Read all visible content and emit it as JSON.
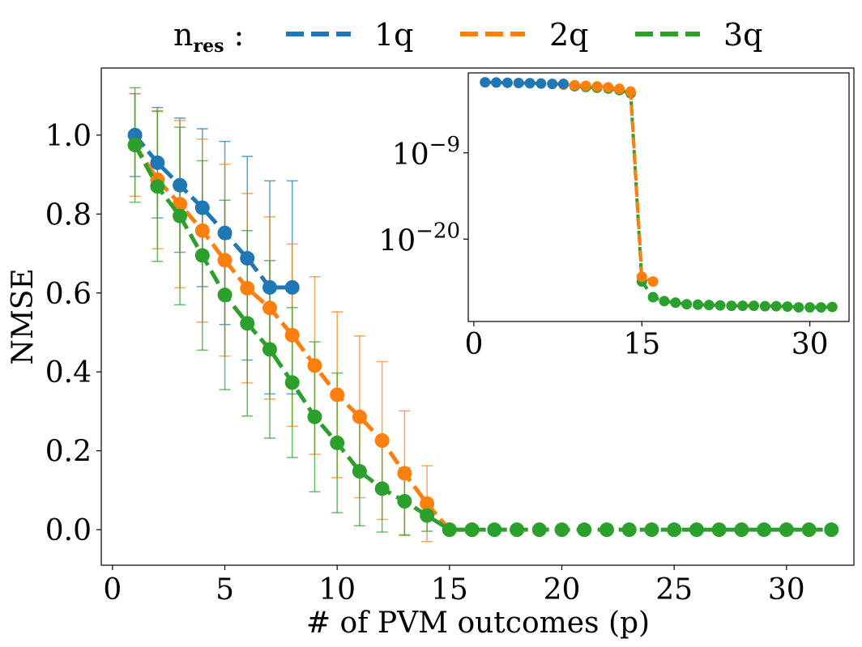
{
  "chart_data": {
    "type": "line",
    "main": {
      "xlabel": "# of PVM outcomes (p)",
      "ylabel": "NMSE",
      "xlim": [
        -0.5,
        33
      ],
      "ylim": [
        -0.09,
        1.17
      ],
      "xticks": [
        0,
        5,
        10,
        15,
        20,
        25,
        30
      ],
      "yticks": [
        0.0,
        0.2,
        0.4,
        0.6,
        0.8,
        1.0
      ],
      "ytick_labels": [
        "0.0",
        "0.2",
        "0.4",
        "0.6",
        "0.8",
        "1.0"
      ],
      "grid": false,
      "series": [
        {
          "name": "1q",
          "color": "#1f77b4",
          "x": [
            1,
            2,
            3,
            4,
            5,
            6,
            7,
            8
          ],
          "y": [
            1.0,
            0.93,
            0.873,
            0.816,
            0.752,
            0.688,
            0.614,
            0.614
          ],
          "err": [
            0.105,
            0.14,
            0.17,
            0.2,
            0.232,
            0.258,
            0.27,
            0.27
          ]
        },
        {
          "name": "2q",
          "color": "#ff7f0e",
          "x": [
            1,
            2,
            3,
            4,
            5,
            6,
            7,
            8,
            9,
            10,
            11,
            12,
            13,
            14,
            15,
            16
          ],
          "y": [
            0.975,
            0.887,
            0.825,
            0.758,
            0.683,
            0.612,
            0.562,
            0.493,
            0.416,
            0.342,
            0.286,
            0.226,
            0.143,
            0.066,
            0.0,
            0.0
          ],
          "err": [
            0.13,
            0.175,
            0.212,
            0.232,
            0.243,
            0.24,
            0.231,
            0.231,
            0.225,
            0.21,
            0.205,
            0.2,
            0.158,
            0.096,
            0.0,
            0.0
          ]
        },
        {
          "name": "3q",
          "color": "#2ca02c",
          "x": [
            1,
            2,
            3,
            4,
            5,
            6,
            7,
            8,
            9,
            10,
            11,
            12,
            13,
            14,
            15,
            16,
            17,
            18,
            19,
            20,
            21,
            22,
            23,
            24,
            25,
            26,
            27,
            28,
            29,
            30,
            31,
            32
          ],
          "y": [
            0.975,
            0.87,
            0.795,
            0.695,
            0.595,
            0.523,
            0.457,
            0.373,
            0.286,
            0.22,
            0.148,
            0.104,
            0.072,
            0.036,
            0.0,
            0.0,
            0.0,
            0.0,
            0.0,
            0.0,
            0.0,
            0.0,
            0.0,
            0.0,
            0.0,
            0.0,
            0.0,
            0.0,
            0.0,
            0.0,
            0.0,
            0.0
          ],
          "err": [
            0.145,
            0.19,
            0.225,
            0.24,
            0.24,
            0.235,
            0.225,
            0.19,
            0.19,
            0.177,
            0.138,
            0.11,
            0.085,
            0.04,
            0.0,
            0.0,
            0.0,
            0.0,
            0.0,
            0.0,
            0.0,
            0.0,
            0.0,
            0.0,
            0.0,
            0.0,
            0.0,
            0.0,
            0.0,
            0.0,
            0.0,
            0.0
          ]
        }
      ]
    },
    "inset": {
      "scale": "log",
      "xlim": [
        -0.5,
        33.5
      ],
      "ylog_lim": [
        -30.5,
        1.2
      ],
      "xticks": [
        0,
        15,
        30
      ],
      "yticks_log": [
        -9,
        -20
      ],
      "ytick_base": "10",
      "ytick_exponents": [
        "−9",
        "−20"
      ],
      "series": [
        {
          "name": "1q",
          "color": "#1f77b4",
          "x": [
            1,
            2,
            3,
            4,
            5,
            6,
            7,
            8
          ],
          "ylog": [
            0.0,
            -0.03,
            -0.06,
            -0.09,
            -0.12,
            -0.16,
            -0.21,
            -0.21
          ]
        },
        {
          "name": "2q",
          "color": "#ff7f0e",
          "x": [
            8,
            9,
            10,
            11,
            12,
            13,
            14,
            15,
            16
          ],
          "ylog": [
            -0.3,
            -0.37,
            -0.45,
            -0.53,
            -0.64,
            -0.83,
            -1.18,
            -24.8,
            -25.4
          ]
        },
        {
          "name": "3q",
          "color": "#2ca02c",
          "x": [
            9,
            10,
            11,
            12,
            13,
            14,
            15,
            16,
            17,
            18,
            19,
            20,
            21,
            22,
            23,
            24,
            25,
            26,
            27,
            28,
            29,
            30,
            31,
            32
          ],
          "ylog": [
            -0.5,
            -0.6,
            -0.7,
            -0.8,
            -1.0,
            -1.4,
            -25.4,
            -27.4,
            -27.9,
            -28.1,
            -28.3,
            -28.35,
            -28.4,
            -28.45,
            -28.5,
            -28.5,
            -28.5,
            -28.55,
            -28.55,
            -28.6,
            -28.7,
            -28.7,
            -28.7,
            -28.65
          ]
        }
      ]
    },
    "legend": {
      "title_base": "n",
      "title_sub": "res",
      "title_suffix": " :",
      "placement": "top-center",
      "entries": [
        "1q",
        "2q",
        "3q"
      ]
    }
  }
}
